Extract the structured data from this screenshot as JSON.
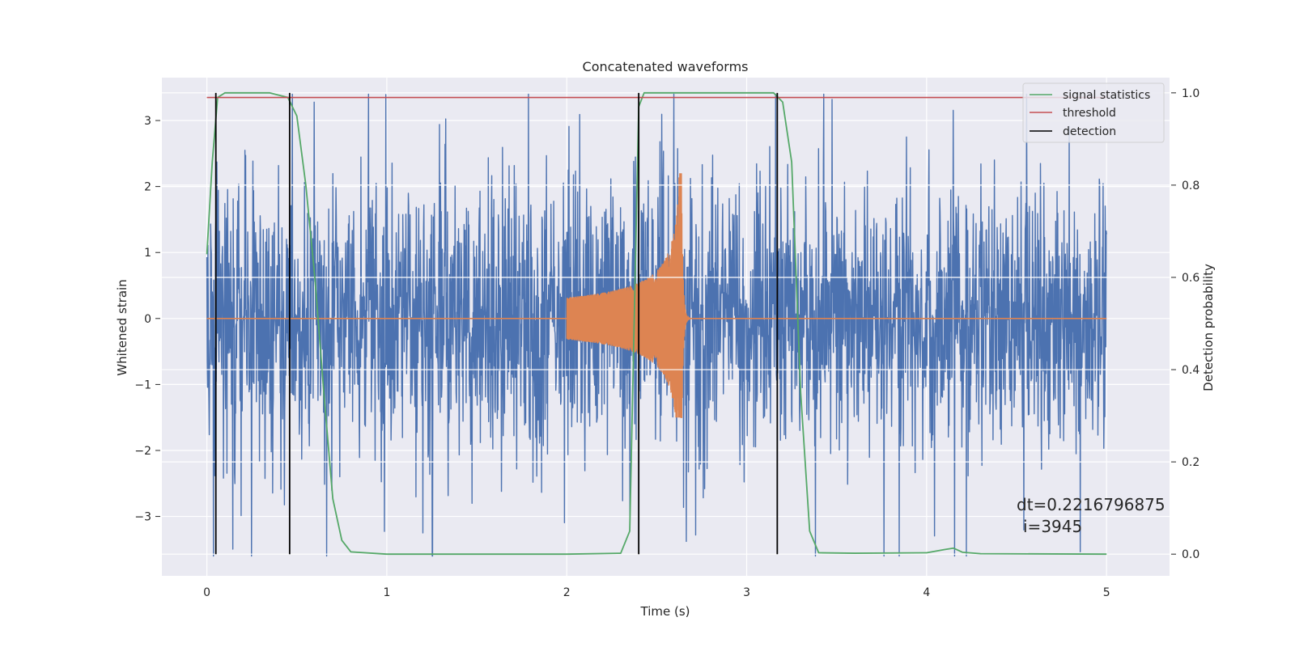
{
  "chart_data": {
    "type": "line",
    "title": "Concatenated waveforms",
    "xlabel": "Time (s)",
    "ylabel": "Whitened strain",
    "y2label": "Detection probability",
    "xlim": [
      -0.25,
      5.35
    ],
    "ylim": [
      -3.9,
      3.65
    ],
    "y2lim": [
      -0.047,
      1.033
    ],
    "xticks": [
      "0",
      "1",
      "2",
      "3",
      "4",
      "5"
    ],
    "yticks": [
      "3",
      "2",
      "1",
      "0",
      "−1",
      "−2",
      "−3"
    ],
    "y2ticks": [
      "1.0",
      "0.8",
      "0.6",
      "0.4",
      "0.2",
      "0.0"
    ],
    "grid": true,
    "legend_position": "top-right",
    "legend": [
      "signal statistics",
      "threshold",
      "detection"
    ],
    "series": [
      {
        "name": "signal statistics",
        "axis": "right",
        "color": "#55a868",
        "x": [
          0.0,
          0.03,
          0.06,
          0.1,
          0.2,
          0.35,
          0.45,
          0.5,
          0.55,
          0.6,
          0.65,
          0.7,
          0.75,
          0.8,
          1.0,
          2.0,
          2.3,
          2.35,
          2.38,
          2.4,
          2.43,
          2.5,
          3.0,
          3.15,
          3.2,
          3.25,
          3.3,
          3.35,
          3.4,
          3.6,
          4.0,
          4.1,
          4.15,
          4.2,
          4.3,
          5.0
        ],
        "values": [
          0.65,
          0.85,
          0.99,
          1.0,
          1.0,
          1.0,
          0.99,
          0.95,
          0.8,
          0.6,
          0.35,
          0.12,
          0.03,
          0.005,
          0.0,
          0.0,
          0.002,
          0.05,
          0.6,
          0.97,
          1.0,
          1.0,
          1.0,
          1.0,
          0.98,
          0.85,
          0.35,
          0.05,
          0.003,
          0.002,
          0.003,
          0.01,
          0.013,
          0.004,
          0.001,
          0.0
        ]
      },
      {
        "name": "threshold",
        "axis": "right",
        "color": "#c44e52",
        "x": [
          0.0,
          5.0
        ],
        "values": [
          0.99,
          0.99
        ]
      },
      {
        "name": "detection",
        "axis": "right",
        "color": "#000000",
        "x": [
          0.05,
          0.46,
          2.4,
          3.17
        ],
        "values": [
          1.0,
          1.0,
          1.0,
          1.0
        ]
      },
      {
        "name": "strain",
        "axis": "left",
        "color": "#4c72b0",
        "x_range": [
          0.0,
          5.0
        ],
        "amplitude_range": [
          -3.6,
          3.4
        ]
      },
      {
        "name": "injected waveform",
        "axis": "left",
        "color": "#dd8452",
        "x_range": [
          2.0,
          2.7
        ],
        "peak_time": 2.64,
        "peak_values": [
          2.2,
          -1.5
        ]
      }
    ],
    "annotations": [
      "dt=0.2216796875",
      "i=3945"
    ]
  }
}
